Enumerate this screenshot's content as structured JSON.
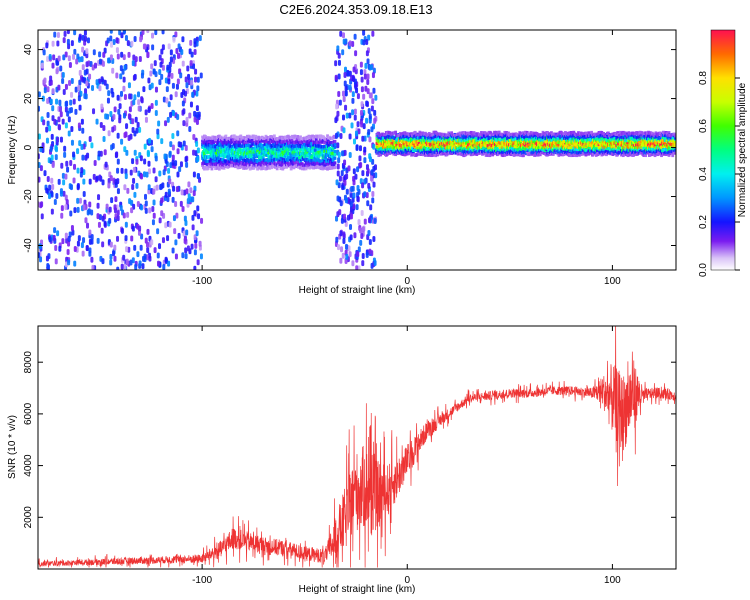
{
  "figure_title": "C2E6.2024.353.09.18.E13",
  "chart_data": [
    {
      "type": "heatmap",
      "xlabel": "Height of straight line (km)",
      "ylabel": "Frequency (Hz)",
      "xlim": [
        -180,
        131
      ],
      "ylim": [
        -50,
        48
      ],
      "xticks": [
        -100,
        0,
        100
      ],
      "yticks": [
        -40,
        -20,
        0,
        20,
        40
      ],
      "colorbar": {
        "label": "Normalized spectral amplitude",
        "range": [
          0,
          1
        ],
        "ticks": [
          0.0,
          0.2,
          0.4,
          0.6,
          0.8
        ],
        "tick_labels": [
          "0.0",
          "0.2",
          "0.4",
          "0.6",
          "0.8"
        ],
        "colormap": "rainbow-white-to-red"
      },
      "regions": [
        {
          "x": [
            -180,
            -100
          ],
          "pattern": "scattered noise",
          "amplitude": [
            0.05,
            0.35
          ]
        },
        {
          "x": [
            -100,
            -35
          ],
          "center_freq": -2,
          "half_width": 6,
          "amplitude": [
            0.25,
            0.55
          ]
        },
        {
          "x": [
            -35,
            -15
          ],
          "pattern": "scattered noise",
          "amplitude": [
            0.05,
            0.35
          ]
        },
        {
          "x": [
            -15,
            131
          ],
          "center_freq": 1.5,
          "half_width": 4,
          "amplitude": [
            0.6,
            1.0
          ]
        }
      ]
    },
    {
      "type": "line",
      "xlabel": "Height of straight line (km)",
      "ylabel": "SNR (10 * v/v)",
      "xlim": [
        -180,
        131
      ],
      "ylim": [
        0,
        9400
      ],
      "xticks": [
        -100,
        0,
        100
      ],
      "yticks": [
        2000,
        4000,
        6000,
        8000
      ],
      "color": "#ee3333",
      "series": [
        {
          "x": [
            -180,
            -160,
            -140,
            -120,
            -100,
            -90,
            -85,
            -70,
            -60,
            -50,
            -40,
            -35,
            -30,
            -25,
            -20,
            -15,
            -10,
            -5,
            0,
            5,
            10,
            15,
            20,
            25,
            30,
            40,
            50,
            60,
            70,
            80,
            90,
            95,
            100,
            105,
            110,
            115,
            120,
            125,
            131
          ],
          "y": [
            200,
            250,
            300,
            350,
            400,
            800,
            1200,
            900,
            800,
            600,
            500,
            1200,
            2000,
            3000,
            3200,
            2800,
            3000,
            3500,
            4200,
            4800,
            5400,
            5700,
            6000,
            6300,
            6600,
            6700,
            6800,
            6800,
            6900,
            6900,
            6800,
            6900,
            6600,
            6000,
            6800,
            6700,
            6800,
            6800,
            6700
          ],
          "noise": [
            150,
            150,
            200,
            200,
            250,
            500,
            600,
            500,
            450,
            400,
            400,
            1200,
            1800,
            2200,
            2400,
            2000,
            1500,
            1200,
            900,
            700,
            500,
            400,
            300,
            250,
            250,
            250,
            250,
            250,
            250,
            250,
            300,
            800,
            2000,
            2200,
            2000,
            400,
            300,
            300,
            300
          ]
        }
      ]
    }
  ]
}
